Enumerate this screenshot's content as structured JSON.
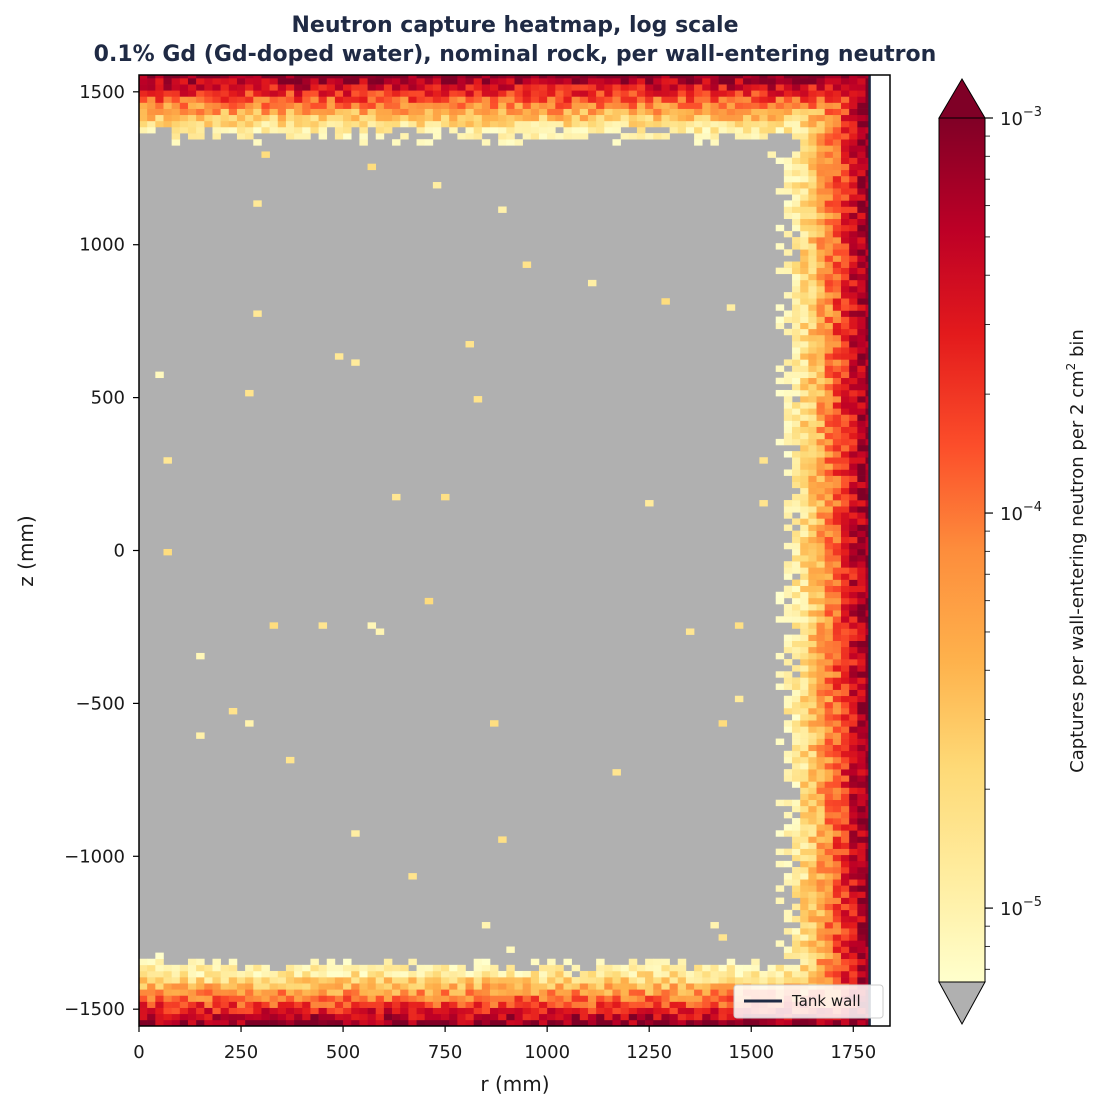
{
  "chart_data": {
    "type": "heatmap",
    "title_line1": "Neutron capture heatmap, log scale",
    "title_line2": "0.1% Gd (Gd-doped water), nominal rock, per wall-entering neutron",
    "xlabel": "r (mm)",
    "ylabel": "z (mm)",
    "xlim": [
      0,
      1840
    ],
    "ylim": [
      -1555,
      1555
    ],
    "x_ticks": [
      0,
      250,
      500,
      750,
      1000,
      1250,
      1500,
      1750
    ],
    "x_tick_labels": [
      "0",
      "250",
      "500",
      "750",
      "1000",
      "1250",
      "1500",
      "1750"
    ],
    "y_ticks": [
      1500,
      1000,
      500,
      0,
      -500,
      -1000,
      -1500
    ],
    "y_tick_labels": [
      "1500",
      "1000",
      "500",
      "0",
      "−500",
      "−1000",
      "−1500"
    ],
    "background_color": "#b0b0b0",
    "colorscale": "YlOrRd",
    "scale": "log",
    "color_range": [
      6.5e-06,
      0.001
    ],
    "extend": "both",
    "under_color": "#b0b0b0",
    "over_color": "#7f0026",
    "colorbar_label_prefix": "Captures per wall-entering neutron per 2 cm",
    "colorbar_label_sup": "2",
    "colorbar_label_suffix": " bin",
    "colorbar_ticks": [
      {
        "value": 0.001,
        "base": "10",
        "exp": "−3"
      },
      {
        "value": 0.0001,
        "base": "10",
        "exp": "−4"
      },
      {
        "value": 1e-05,
        "base": "10",
        "exp": "−5"
      }
    ],
    "tank_wall": {
      "r": 1790,
      "color": "#1f2a44"
    },
    "legend": {
      "label": "Tank wall",
      "placement": "lower-right"
    },
    "bin_size_mm": 20,
    "field_description": {
      "side_band_r": [
        1660,
        1790
      ],
      "top_band_z": [
        1380,
        1555
      ],
      "bottom_band_z": [
        -1555,
        -1380
      ],
      "peak_value_near_wall": 0.001
    }
  }
}
